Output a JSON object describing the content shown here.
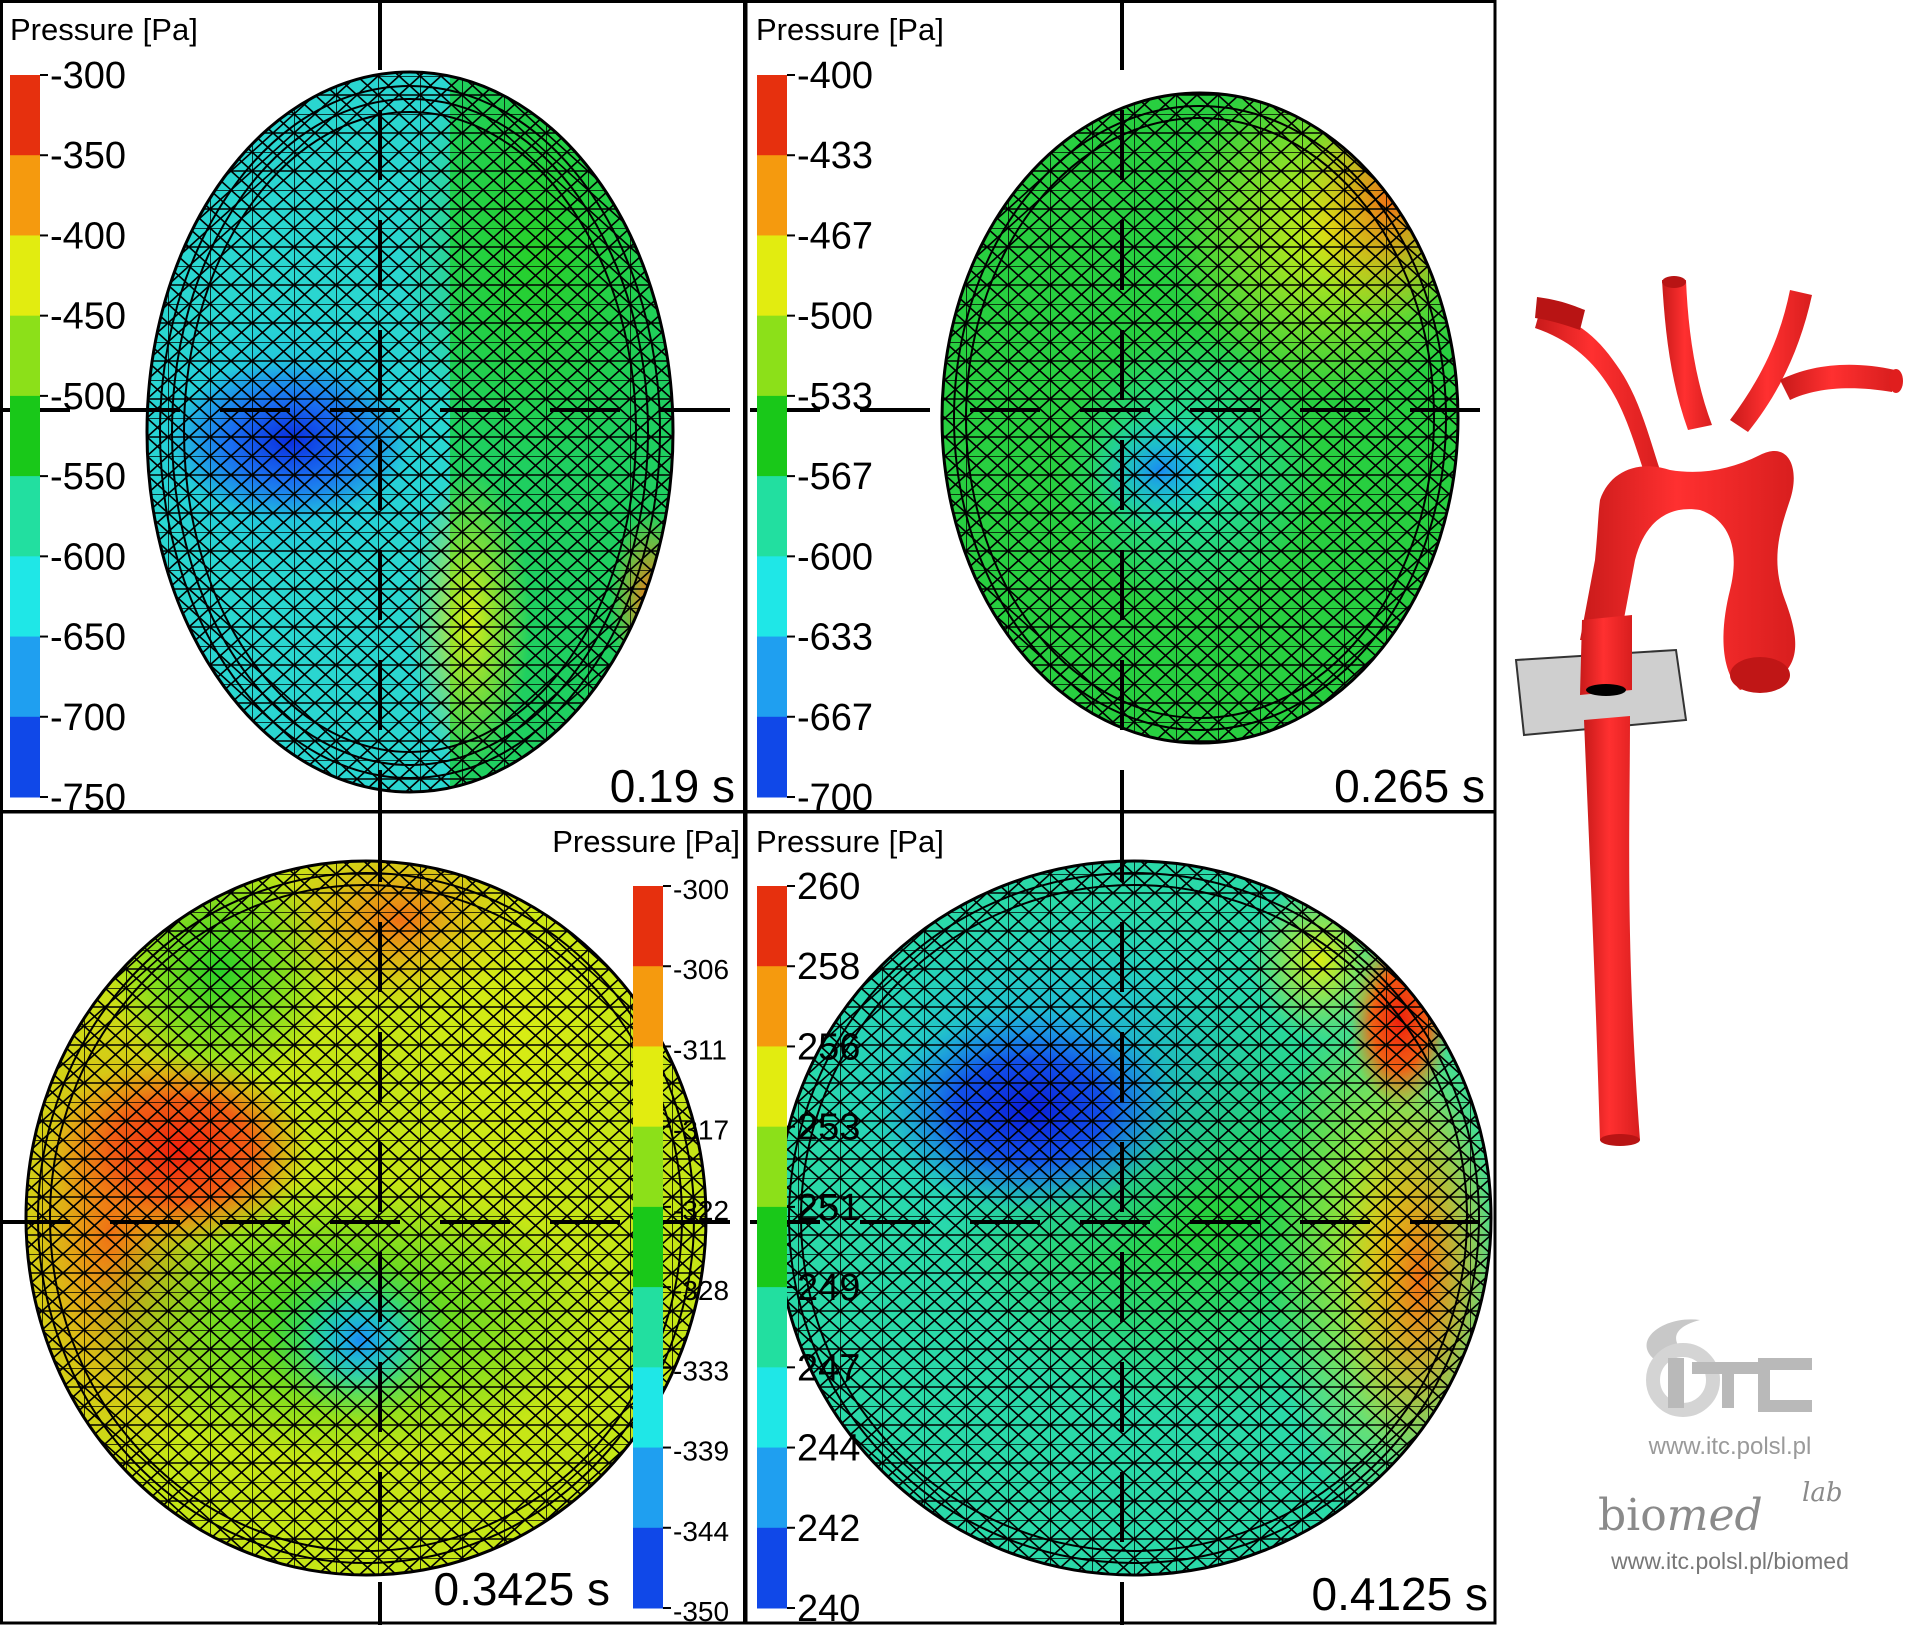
{
  "panels": [
    {
      "id": "top-left",
      "title": "Pressure [Pa]",
      "ticks": [
        "-300",
        "-350",
        "-400",
        "-450",
        "-500",
        "-550",
        "-600",
        "-650",
        "-700",
        "-750"
      ],
      "time": "0.19 s",
      "legend_side": "left"
    },
    {
      "id": "top-right",
      "title": "Pressure [Pa]",
      "ticks": [
        "-400",
        "-433",
        "-467",
        "-500",
        "-533",
        "-567",
        "-600",
        "-633",
        "-667",
        "-700"
      ],
      "time": "0.265 s",
      "legend_side": "left"
    },
    {
      "id": "bottom-left",
      "title": "Pressure [Pa]",
      "ticks": [
        "-300",
        "-306",
        "-311",
        "-317",
        "-322",
        "-328",
        "-333",
        "-339",
        "-344",
        "-350"
      ],
      "time": "0.3425 s",
      "legend_side": "right"
    },
    {
      "id": "bottom-right",
      "title": "Pressure [Pa]",
      "ticks": [
        "260",
        "258",
        "256",
        "253",
        "251",
        "249",
        "247",
        "244",
        "242",
        "240"
      ],
      "time": "0.4125 s",
      "legend_side": "left"
    }
  ],
  "colormap": [
    "#e6300e",
    "#f59a0e",
    "#e2ec10",
    "#8ce019",
    "#19c819",
    "#22dfa0",
    "#1fe7e7",
    "#1f9ff0",
    "#1048e8"
  ],
  "logos": {
    "itc_mark": "ITC",
    "itc_url": "www.itc.polsl.pl",
    "biomed_bio": "bio",
    "biomed_med": "med",
    "biomed_lab": "lab",
    "biomed_url": "www.itc.polsl.pl/biomed"
  },
  "icons": {
    "aorta": "aorta-model-icon",
    "itc": "itc-logo-icon",
    "biomed": "biomed-logo-icon"
  }
}
